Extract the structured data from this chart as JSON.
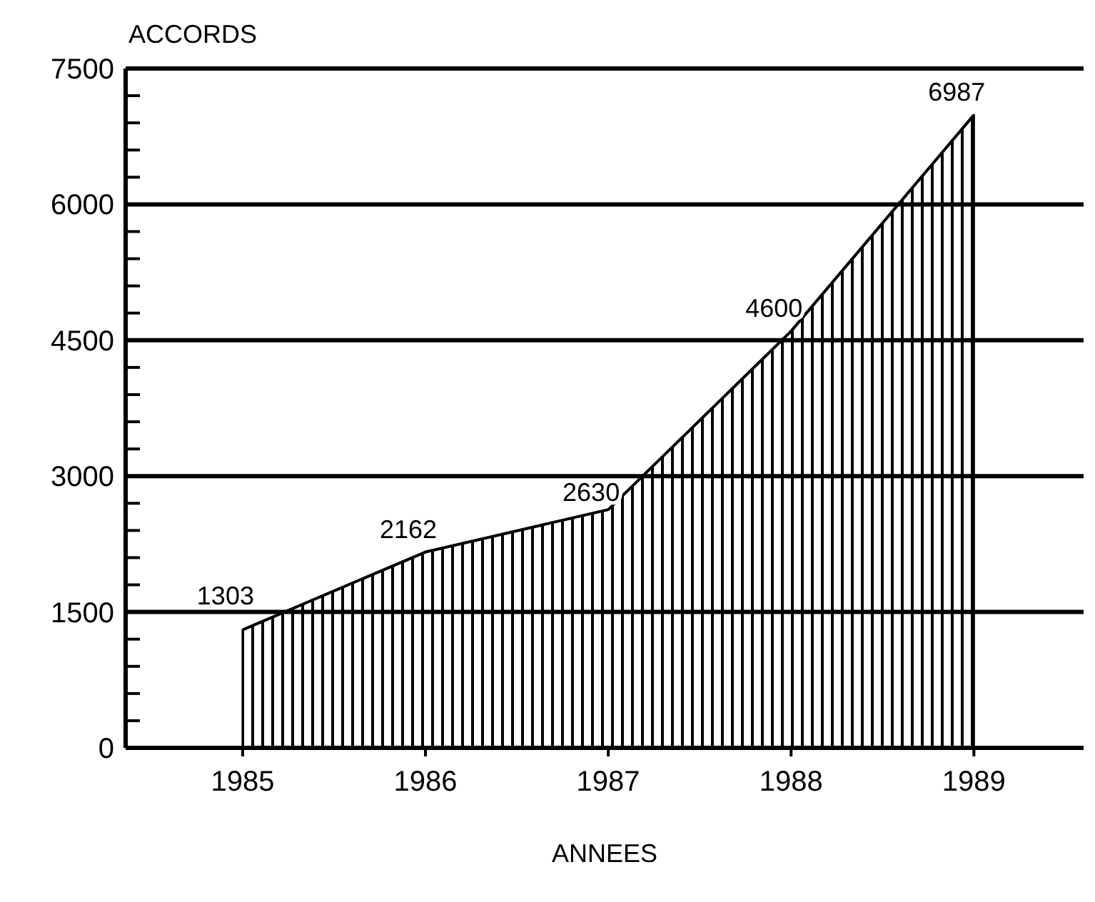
{
  "chart_data": {
    "type": "area",
    "xlabel": "ANNEES",
    "ylabel": "ACCORDS",
    "x": [
      1985,
      1986,
      1987,
      1988,
      1989
    ],
    "series": [
      {
        "color": "#000000",
        "values": [
          1303,
          2162,
          2630,
          4600,
          6987
        ]
      }
    ],
    "xlim": [
      1984.36,
      1989.6
    ],
    "xticks": [
      1985,
      1986,
      1987,
      1988,
      1989
    ],
    "ylim": [
      0,
      7500
    ],
    "yticks": [
      0,
      {
        "value": 300,
        "label": null
      },
      {
        "value": 600,
        "label": null
      },
      {
        "value": 900,
        "label": null
      },
      {
        "value": 1200,
        "label": null
      },
      1500,
      {
        "value": 1800,
        "label": null
      },
      {
        "value": 2100,
        "label": null
      },
      {
        "value": 2400,
        "label": null
      },
      {
        "value": 2700,
        "label": null
      },
      3000,
      {
        "value": 3300,
        "label": null
      },
      {
        "value": 3600,
        "label": null
      },
      {
        "value": 3900,
        "label": null
      },
      {
        "value": 4200,
        "label": null
      },
      4500,
      {
        "value": 4800,
        "label": null
      },
      {
        "value": 5100,
        "label": null
      },
      {
        "value": 5400,
        "label": null
      },
      {
        "value": 5700,
        "label": null
      },
      6000,
      {
        "value": 6300,
        "label": null
      },
      {
        "value": 6600,
        "label": null
      },
      {
        "value": 6900,
        "label": null
      },
      {
        "value": 7200,
        "label": null
      },
      7500
    ],
    "grid": "y",
    "data_labels": true
  }
}
